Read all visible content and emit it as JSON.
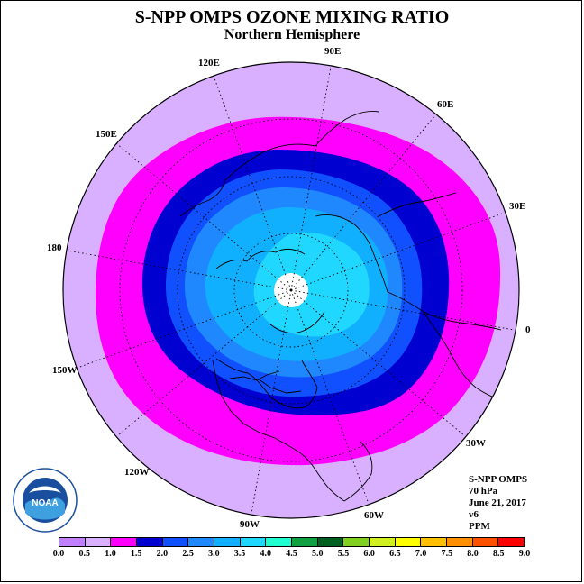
{
  "title": "S-NPP OMPS OZONE MIXING RATIO",
  "subtitle": "Northern Hemisphere",
  "longitude_labels": [
    {
      "text": "90E",
      "name": "lon-label-90e"
    },
    {
      "text": "60E",
      "name": "lon-label-60e"
    },
    {
      "text": "30E",
      "name": "lon-label-30e"
    },
    {
      "text": "0",
      "name": "lon-label-0"
    },
    {
      "text": "30W",
      "name": "lon-label-30w"
    },
    {
      "text": "60W",
      "name": "lon-label-60w"
    },
    {
      "text": "90W",
      "name": "lon-label-90w"
    },
    {
      "text": "120W",
      "name": "lon-label-120w"
    },
    {
      "text": "150W",
      "name": "lon-label-150w"
    },
    {
      "text": "180",
      "name": "lon-label-180"
    },
    {
      "text": "150E",
      "name": "lon-label-150e"
    },
    {
      "text": "120E",
      "name": "lon-label-120e"
    }
  ],
  "info": {
    "instrument": "S-NPP OMPS",
    "pressure": "70 hPa",
    "date": "June 21, 2017",
    "version": "v6",
    "units": "PPM"
  },
  "logo_text": "NOAA",
  "colorbar": {
    "ticks": [
      "0.0",
      "0.5",
      "1.0",
      "1.5",
      "2.0",
      "2.5",
      "3.0",
      "3.5",
      "4.0",
      "4.5",
      "5.0",
      "5.5",
      "6.0",
      "6.5",
      "7.0",
      "7.5",
      "8.0",
      "8.5",
      "9.0"
    ],
    "colors": [
      "#c080ff",
      "#d8b0ff",
      "#ff00ff",
      "#0000d0",
      "#1050ff",
      "#2088ff",
      "#10b0ff",
      "#20d8ff",
      "#20ffd0",
      "#10a040",
      "#006020",
      "#80d020",
      "#d0f020",
      "#ffff00",
      "#ffc000",
      "#ff9000",
      "#ff5000",
      "#ff0000",
      "#905030"
    ]
  }
}
